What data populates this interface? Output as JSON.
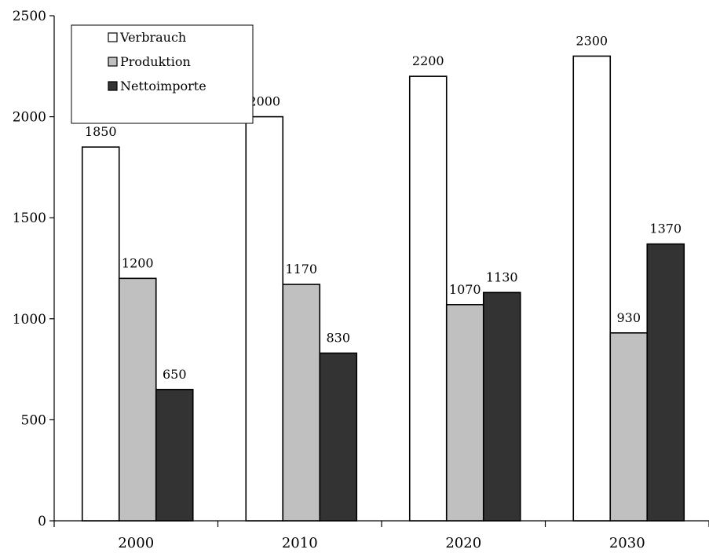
{
  "chart_data": {
    "type": "bar",
    "categories": [
      "2000",
      "2010",
      "2020",
      "2030"
    ],
    "series": [
      {
        "name": "Verbrauch",
        "values": [
          1850,
          2000,
          2200,
          2300
        ],
        "color": "#ffffff"
      },
      {
        "name": "Produktion",
        "values": [
          1200,
          1170,
          1070,
          930
        ],
        "color": "#c0c0c0"
      },
      {
        "name": "Nettoimporte",
        "values": [
          650,
          830,
          1130,
          1370
        ],
        "color": "#333333"
      }
    ],
    "title": "",
    "xlabel": "",
    "ylabel": "",
    "ylim": [
      0,
      2500
    ],
    "yticks": [
      0,
      500,
      1000,
      1500,
      2000,
      2500
    ],
    "grid": false,
    "legend_position": "top-left",
    "data_labels": true
  }
}
